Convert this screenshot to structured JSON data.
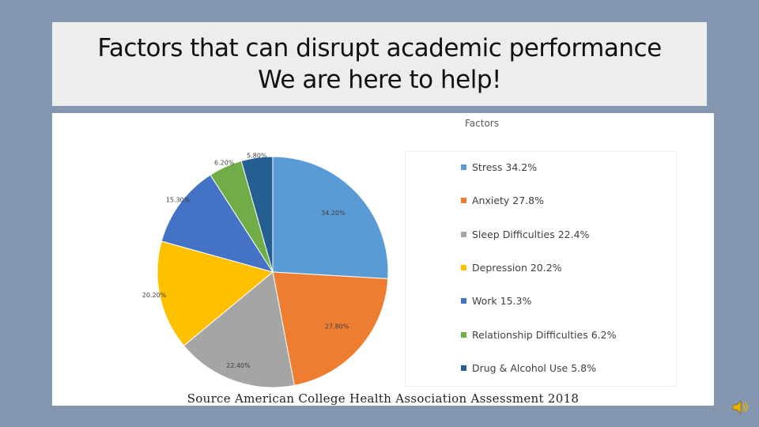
{
  "slide": {
    "title_line1": "Factors that can disrupt academic performance",
    "title_line2": "We are here to help!",
    "source": "Source American College Health Association Assessment 2018"
  },
  "icons": {
    "audio": "speaker-icon"
  },
  "chart_data": {
    "type": "pie",
    "title": "Factors",
    "categories": [
      "Stress",
      "Anxiety",
      "Sleep Difficulties",
      "Depression",
      "Work",
      "Relationship Difficulties",
      "Drug & Alcohol Use"
    ],
    "values": [
      34.2,
      27.8,
      22.4,
      20.2,
      15.3,
      6.2,
      5.8
    ],
    "data_labels": [
      "34.20%",
      "27.80%",
      "22.40%",
      "20.20%",
      "15.30%",
      "6.20%",
      "5.80%"
    ],
    "legend_labels": [
      "Stress 34.2%",
      "Anxiety 27.8%",
      "Sleep Difficulties 22.4%",
      "Depression 20.2%",
      "Work 15.3%",
      "Relationship Difficulties 6.2%",
      "Drug & Alcohol Use 5.8%"
    ],
    "colors": [
      "#5b9bd5",
      "#ed7d31",
      "#a5a5a5",
      "#ffc000",
      "#4472c4",
      "#70ad47",
      "#255e91"
    ],
    "legend_position": "right"
  }
}
